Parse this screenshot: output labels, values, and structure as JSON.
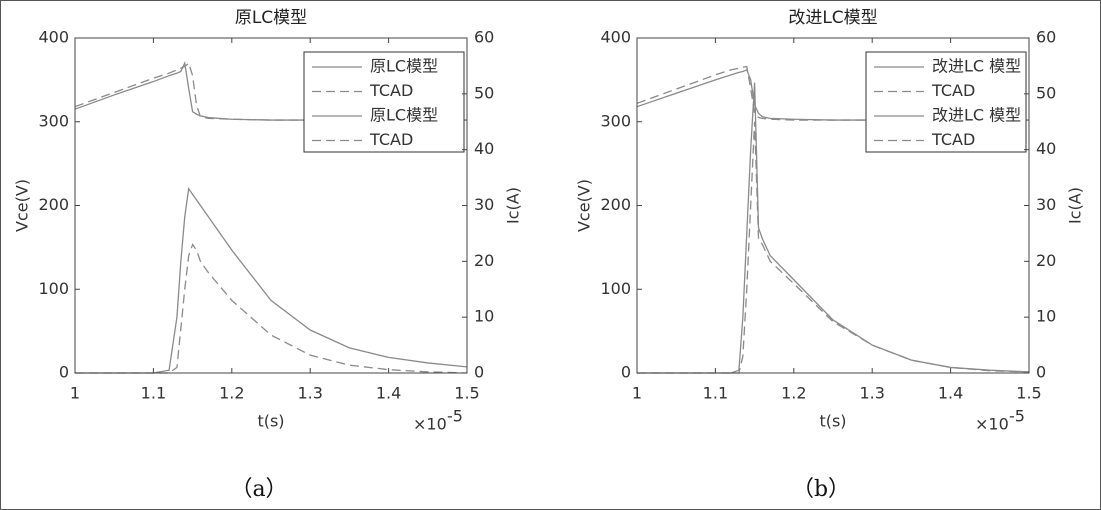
{
  "chart_data": [
    {
      "type": "line",
      "title": "原LC模型",
      "xlabel": "t(s)",
      "ylabel": "Vce(V)",
      "y2label": "Ic(A)",
      "x_multiplier": "×10",
      "x_exponent": "-5",
      "caption": "（a）",
      "x": [
        1,
        1.05,
        1.1,
        1.12,
        1.13,
        1.135,
        1.14,
        1.145,
        1.15,
        1.155,
        1.16,
        1.17,
        1.2,
        1.25,
        1.3,
        1.35,
        1.4,
        1.45,
        1.5
      ],
      "xlim": [
        1,
        1.5
      ],
      "xticks": [
        1,
        1.1,
        1.2,
        1.3,
        1.4,
        1.5
      ],
      "ylim": [
        0,
        400
      ],
      "yticks": [
        0,
        100,
        200,
        300,
        400
      ],
      "y2lim": [
        0,
        60
      ],
      "y2ticks": [
        0,
        10,
        20,
        30,
        40,
        50,
        60
      ],
      "legend": "northeast",
      "grid": false,
      "series": [
        {
          "name": "原LC模型",
          "color": "#8a8a8a",
          "dash": false,
          "values": [
            315,
            332,
            348,
            355,
            358,
            360,
            370,
            340,
            312,
            309,
            307,
            305,
            303,
            302,
            302,
            302,
            302,
            302,
            302
          ]
        },
        {
          "name": "TCAD",
          "color": "#8a8a8a",
          "dash": true,
          "values": [
            318,
            335,
            352,
            358,
            362,
            364,
            366,
            370,
            355,
            320,
            306,
            304,
            303,
            302,
            302,
            302,
            302,
            302,
            302
          ]
        },
        {
          "name": "原LC模型",
          "color": "#8a8a8a",
          "dash": false,
          "axis": "y2",
          "values": [
            0,
            0,
            0,
            0.5,
            10,
            20,
            28,
            33,
            32,
            31,
            30,
            28,
            22,
            13,
            7.7,
            4.5,
            2.8,
            1.8,
            1.1
          ]
        },
        {
          "name": "TCAD",
          "color": "#8a8a8a",
          "dash": true,
          "axis": "y2",
          "values": [
            0,
            0,
            0,
            0,
            1,
            8,
            15,
            21,
            23,
            22,
            20,
            18,
            13,
            6.8,
            3.2,
            1.4,
            0.6,
            0.2,
            0
          ]
        }
      ]
    },
    {
      "type": "line",
      "title": "改进LC模型",
      "xlabel": "t(s)",
      "ylabel": "Vce(V)",
      "y2label": "Ic(A)",
      "x_multiplier": "×10",
      "x_exponent": "-5",
      "caption": "（b）",
      "x": [
        1,
        1.05,
        1.1,
        1.12,
        1.13,
        1.135,
        1.14,
        1.145,
        1.15,
        1.155,
        1.16,
        1.17,
        1.2,
        1.25,
        1.3,
        1.35,
        1.4,
        1.45,
        1.5
      ],
      "xlim": [
        1,
        1.5
      ],
      "xticks": [
        1,
        1.1,
        1.2,
        1.3,
        1.4,
        1.5
      ],
      "ylim": [
        0,
        400
      ],
      "yticks": [
        0,
        100,
        200,
        300,
        400
      ],
      "y2lim": [
        0,
        60
      ],
      "y2ticks": [
        0,
        10,
        20,
        30,
        40,
        50,
        60
      ],
      "legend": "northeast",
      "grid": false,
      "series": [
        {
          "name": "改进LC 模型",
          "color": "#8a8a8a",
          "dash": false,
          "values": [
            318,
            334,
            350,
            356,
            359,
            360,
            362,
            350,
            320,
            310,
            306,
            304,
            303,
            302,
            302,
            302,
            302,
            302,
            302
          ]
        },
        {
          "name": "TCAD",
          "color": "#8a8a8a",
          "dash": true,
          "values": [
            322,
            339,
            356,
            362,
            364,
            365,
            366,
            340,
            310,
            305,
            304,
            303,
            302,
            302,
            302,
            302,
            302,
            302,
            302
          ]
        },
        {
          "name": "改进LC 模型",
          "color": "#8a8a8a",
          "dash": false,
          "axis": "y2",
          "values": [
            0,
            0,
            0,
            0,
            0.5,
            10,
            25,
            40,
            52,
            26,
            24,
            21,
            16.7,
            9.5,
            5,
            2.3,
            1,
            0.5,
            0.2
          ]
        },
        {
          "name": "TCAD",
          "color": "#8a8a8a",
          "dash": true,
          "axis": "y2",
          "values": [
            0,
            0,
            0,
            0,
            0,
            3,
            15,
            30,
            45,
            24,
            23,
            20,
            16,
            9.2,
            5,
            2.3,
            1,
            0.4,
            0.2
          ]
        }
      ]
    }
  ]
}
